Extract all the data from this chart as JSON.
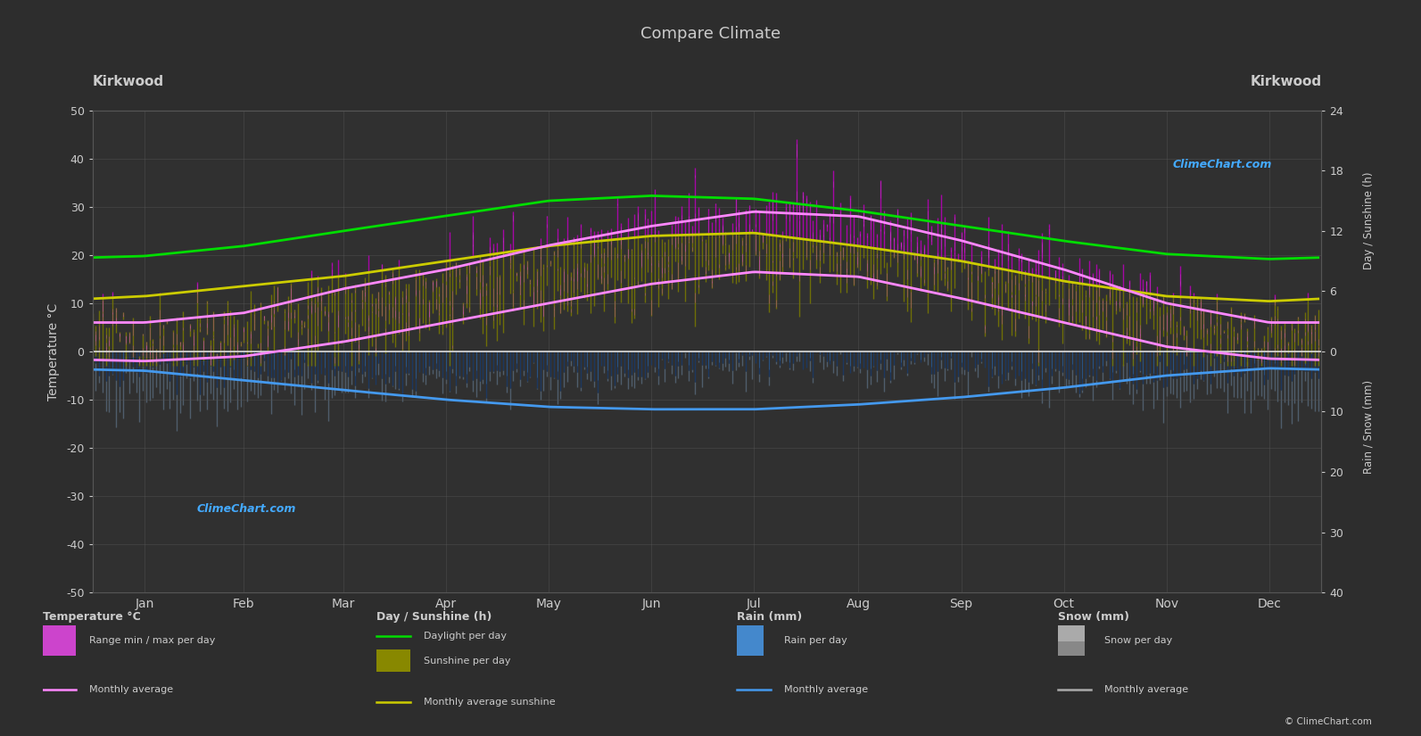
{
  "title": "Compare Climate",
  "location": "Kirkwood",
  "bg_color": "#2d2d2d",
  "plot_bg_color": "#303030",
  "grid_color": "#555555",
  "text_color": "#cccccc",
  "left_label": "Temperature °C",
  "right_label_top": "Day / Sunshine (h)",
  "right_label_bottom": "Rain / Snow (mm)",
  "ylim_left": [
    -50,
    50
  ],
  "months": [
    "Jan",
    "Feb",
    "Mar",
    "Apr",
    "May",
    "Jun",
    "Jul",
    "Aug",
    "Sep",
    "Oct",
    "Nov",
    "Dec"
  ],
  "daylight_hours": [
    9.5,
    10.5,
    12.0,
    13.5,
    15.0,
    15.5,
    15.2,
    14.0,
    12.5,
    11.0,
    9.7,
    9.2
  ],
  "sunshine_hours": [
    5.5,
    6.5,
    7.5,
    9.0,
    10.5,
    11.5,
    11.8,
    10.5,
    9.0,
    7.0,
    5.5,
    5.0
  ],
  "temp_avg_max": [
    6.0,
    8.0,
    13.0,
    17.0,
    22.0,
    26.0,
    29.0,
    28.0,
    23.0,
    17.0,
    10.0,
    6.0
  ],
  "temp_avg_min": [
    -2.0,
    -1.0,
    2.0,
    6.0,
    10.0,
    14.0,
    16.5,
    15.5,
    11.0,
    6.0,
    1.0,
    -1.5
  ],
  "temp_daily_max_mean": [
    11.0,
    13.0,
    17.0,
    21.0,
    24.0,
    25.0,
    25.5,
    25.5,
    23.0,
    19.0,
    13.5,
    10.5
  ],
  "temp_daily_min_mean": [
    -2.0,
    -1.5,
    1.5,
    5.0,
    9.0,
    13.5,
    16.0,
    15.5,
    11.5,
    6.0,
    1.0,
    -1.5
  ],
  "blue_line_monthly": [
    -4.0,
    -6.0,
    -8.0,
    -10.0,
    -11.5,
    -12.0,
    -12.0,
    -11.0,
    -9.5,
    -7.5,
    -5.0,
    -3.5
  ],
  "rain_per_day_mm": [
    3.5,
    3.5,
    4.0,
    4.5,
    4.0,
    2.5,
    1.5,
    2.0,
    3.0,
    4.0,
    4.0,
    3.5
  ],
  "snow_per_day_mm": [
    7.0,
    6.0,
    3.5,
    0.8,
    0.0,
    0.0,
    0.0,
    0.0,
    0.0,
    0.5,
    4.0,
    7.0
  ],
  "colors": {
    "daylight_line": "#00dd00",
    "sunshine_line": "#cccc00",
    "sunshine_fill": "#888800",
    "temp_avg_line": "#ff88ff",
    "zero_line": "#ffffff",
    "blue_line": "#4499ee",
    "rain_bar": "#2255aa",
    "snow_bar": "#5566aa",
    "temp_bar_purple": "#cc00cc",
    "temp_bar_olive": "#888800",
    "text": "#cccccc",
    "watermark": "#44aaff"
  }
}
